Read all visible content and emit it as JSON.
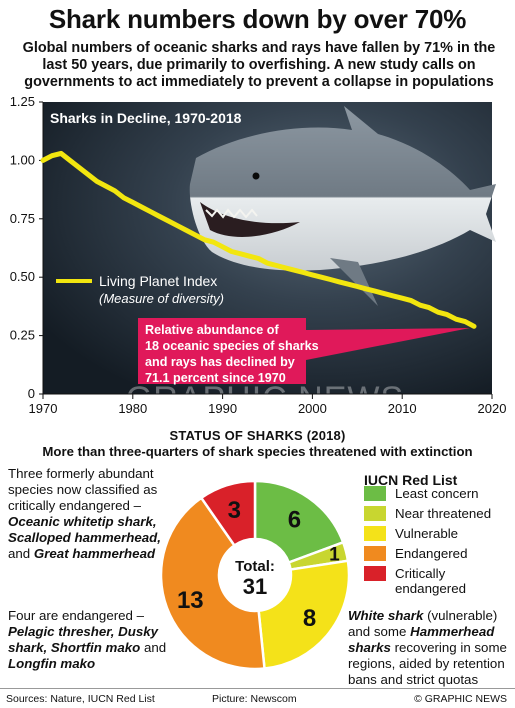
{
  "header": {
    "title": "Shark numbers down by over 70%",
    "subtitle": "Global numbers of oceanic sharks and rays have fallen by 71% in the last 50 years, due primarily to overfishing. A new study calls on governments to act immediately to prevent a collapse in populations"
  },
  "line_panel": {
    "inner_title": "Sharks in Decline, 1970-2018",
    "legend_label": "Living Planet Index",
    "legend_sub": "(Measure of diversity)",
    "callout_lines": [
      "Relative abundance of",
      "18 oceanic species of sharks",
      "and rays has declined by",
      "71.1 percent since 1970"
    ],
    "watermark": "GRAPHIC NEWS",
    "colors": {
      "line": "#f2e60f",
      "callout": "#e0195a",
      "bg": "#2a3440"
    }
  },
  "donut_panel": {
    "title": "STATUS OF SHARKS (2018)",
    "subtitle": "More than three-quarters of shark species threatened with extinction",
    "center_label": "Total:",
    "center_value": "31",
    "legend_title": "IUCN Red List",
    "note_left_1": [
      "Three formerly abundant species now classified as critically endangered – ",
      "Oceanic whitetip shark, Scalloped hammerhead,",
      " and ",
      "Great hammerhead"
    ],
    "note_left_2": [
      "Four are endangered – ",
      "Pelagic thresher, Dusky shark, Shortfin mako",
      " and ",
      "Longfin mako"
    ],
    "note_right": [
      "White shark",
      " (vulnerable) and some ",
      "Hammerhead sharks",
      " recovering in some regions, aided by retention bans and strict quotas"
    ]
  },
  "footer": {
    "sources": "Sources: Nature, IUCN Red List",
    "picture": "Picture: Newscom",
    "credit": "© GRAPHIC NEWS"
  },
  "chart_data": [
    {
      "type": "line",
      "title": "Sharks in Decline, 1970-2018",
      "xlabel": "",
      "ylabel": "",
      "xlim": [
        1970,
        2020
      ],
      "ylim": [
        0,
        1.25
      ],
      "x_ticks": [
        1970,
        1980,
        1990,
        2000,
        2010,
        2020
      ],
      "y_ticks": [
        0,
        0.25,
        0.5,
        0.75,
        1.0,
        1.25
      ],
      "y_tick_labels": [
        "0",
        "0.25",
        "0.50",
        "0.75",
        "1.00",
        "1.25"
      ],
      "grid": false,
      "series": [
        {
          "name": "Living Planet Index",
          "x": [
            1970,
            1971,
            1972,
            1973,
            1974,
            1975,
            1976,
            1977,
            1978,
            1979,
            1980,
            1981,
            1982,
            1983,
            1984,
            1985,
            1986,
            1987,
            1988,
            1989,
            1990,
            1991,
            1992,
            1993,
            1994,
            1995,
            1996,
            1997,
            1998,
            1999,
            2000,
            2001,
            2002,
            2003,
            2004,
            2005,
            2006,
            2007,
            2008,
            2009,
            2010,
            2011,
            2012,
            2013,
            2014,
            2015,
            2016,
            2017,
            2018
          ],
          "y": [
            1.0,
            1.02,
            1.03,
            1.0,
            0.97,
            0.94,
            0.91,
            0.89,
            0.87,
            0.84,
            0.82,
            0.8,
            0.78,
            0.76,
            0.74,
            0.72,
            0.7,
            0.68,
            0.66,
            0.65,
            0.63,
            0.61,
            0.6,
            0.59,
            0.58,
            0.56,
            0.55,
            0.54,
            0.53,
            0.52,
            0.51,
            0.5,
            0.49,
            0.48,
            0.47,
            0.46,
            0.45,
            0.44,
            0.43,
            0.42,
            0.41,
            0.4,
            0.38,
            0.37,
            0.35,
            0.34,
            0.32,
            0.31,
            0.29
          ]
        }
      ]
    },
    {
      "type": "pie",
      "title": "STATUS OF SHARKS (2018)",
      "total": 31,
      "categories": [
        "Least concern",
        "Near threatened",
        "Vulnerable",
        "Endangered",
        "Critically endangered"
      ],
      "values": [
        6,
        1,
        8,
        13,
        3
      ],
      "colors": [
        "#6cbd45",
        "#c8d630",
        "#f4e219",
        "#f08a1f",
        "#d92129"
      ]
    }
  ]
}
